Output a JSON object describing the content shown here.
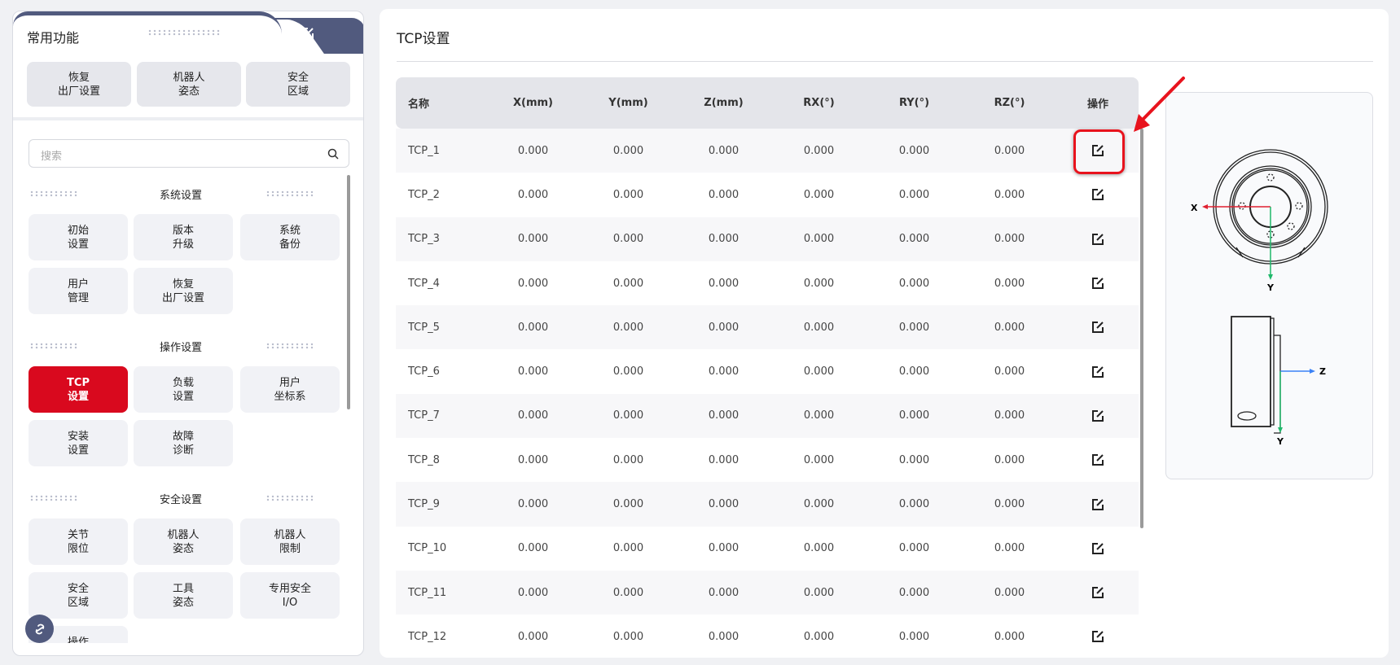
{
  "left_panel": {
    "tab_title": "常用功能",
    "tab_edit_icon": "edit-icon",
    "common": [
      "恢复\n出厂设置",
      "机器人\n姿态",
      "安全\n区域"
    ],
    "search_placeholder": "搜索",
    "sections": [
      {
        "title": "系统设置",
        "items": [
          "初始\n设置",
          "版本\n升级",
          "系统\n备份",
          "用户\n管理",
          "恢复\n出厂设置"
        ]
      },
      {
        "title": "操作设置",
        "items": [
          "TCP\n设置",
          "负载\n设置",
          "用户\n坐标系",
          "安装\n设置",
          "故障\n诊断"
        ],
        "active": 0
      },
      {
        "title": "安全设置",
        "items": [
          "关节\n限位",
          "机器人\n姿态",
          "机器人\n限制",
          "安全\n区域",
          "工具\n姿态",
          "专用安全\nI/O",
          "操作\n安全"
        ]
      }
    ],
    "float_icon": "link-icon"
  },
  "main": {
    "title": "TCP设置",
    "columns": [
      "名称",
      "X(mm)",
      "Y(mm)",
      "Z(mm)",
      "RX(°)",
      "RY(°)",
      "RZ(°)",
      "操作"
    ],
    "rows": [
      [
        "TCP_1",
        "0.000",
        "0.000",
        "0.000",
        "0.000",
        "0.000",
        "0.000"
      ],
      [
        "TCP_2",
        "0.000",
        "0.000",
        "0.000",
        "0.000",
        "0.000",
        "0.000"
      ],
      [
        "TCP_3",
        "0.000",
        "0.000",
        "0.000",
        "0.000",
        "0.000",
        "0.000"
      ],
      [
        "TCP_4",
        "0.000",
        "0.000",
        "0.000",
        "0.000",
        "0.000",
        "0.000"
      ],
      [
        "TCP_5",
        "0.000",
        "0.000",
        "0.000",
        "0.000",
        "0.000",
        "0.000"
      ],
      [
        "TCP_6",
        "0.000",
        "0.000",
        "0.000",
        "0.000",
        "0.000",
        "0.000"
      ],
      [
        "TCP_7",
        "0.000",
        "0.000",
        "0.000",
        "0.000",
        "0.000",
        "0.000"
      ],
      [
        "TCP_8",
        "0.000",
        "0.000",
        "0.000",
        "0.000",
        "0.000",
        "0.000"
      ],
      [
        "TCP_9",
        "0.000",
        "0.000",
        "0.000",
        "0.000",
        "0.000",
        "0.000"
      ],
      [
        "TCP_10",
        "0.000",
        "0.000",
        "0.000",
        "0.000",
        "0.000",
        "0.000"
      ],
      [
        "TCP_11",
        "0.000",
        "0.000",
        "0.000",
        "0.000",
        "0.000",
        "0.000"
      ],
      [
        "TCP_12",
        "0.000",
        "0.000",
        "0.000",
        "0.000",
        "0.000",
        "0.000"
      ]
    ],
    "row_action_icon": "edit-icon",
    "diagram": {
      "top_x": "X",
      "top_y": "Y",
      "side_z": "Z",
      "side_y": "Y"
    }
  },
  "colors": {
    "accent": "#d9091e",
    "tab_dark": "#515a7e",
    "highlight": "#e8131d",
    "axis_x": "#e02030",
    "axis_y": "#1fb86a",
    "axis_z": "#3b82f6"
  }
}
